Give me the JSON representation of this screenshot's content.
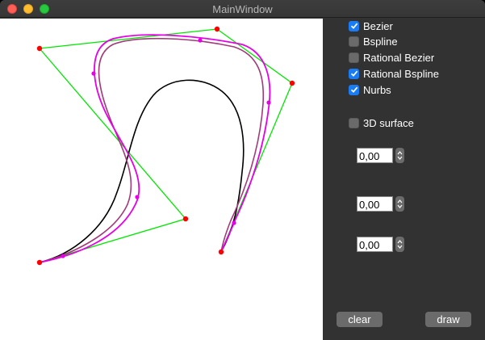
{
  "window": {
    "title": "MainWindow"
  },
  "checkboxes": [
    {
      "label": "Bezier",
      "checked": true
    },
    {
      "label": "Bspline",
      "checked": false
    },
    {
      "label": "Rational Bezier",
      "checked": false
    },
    {
      "label": "Rational Bspline",
      "checked": true
    },
    {
      "label": "Nurbs",
      "checked": true
    },
    {
      "label": "3D surface",
      "checked": false
    }
  ],
  "spinboxes": [
    {
      "value": "0,00"
    },
    {
      "value": "0,00"
    },
    {
      "value": "0,00"
    }
  ],
  "buttons": {
    "clear": "clear",
    "draw": "draw"
  },
  "colors": {
    "control_polygon": "#00e600",
    "control_points": "#ff0000",
    "bezier_curve": "#000000",
    "rational_bspline_curve": "#a03a78",
    "nurbs_curve": "#e600e6",
    "checkbox_checked": "#1a7cf4"
  }
}
